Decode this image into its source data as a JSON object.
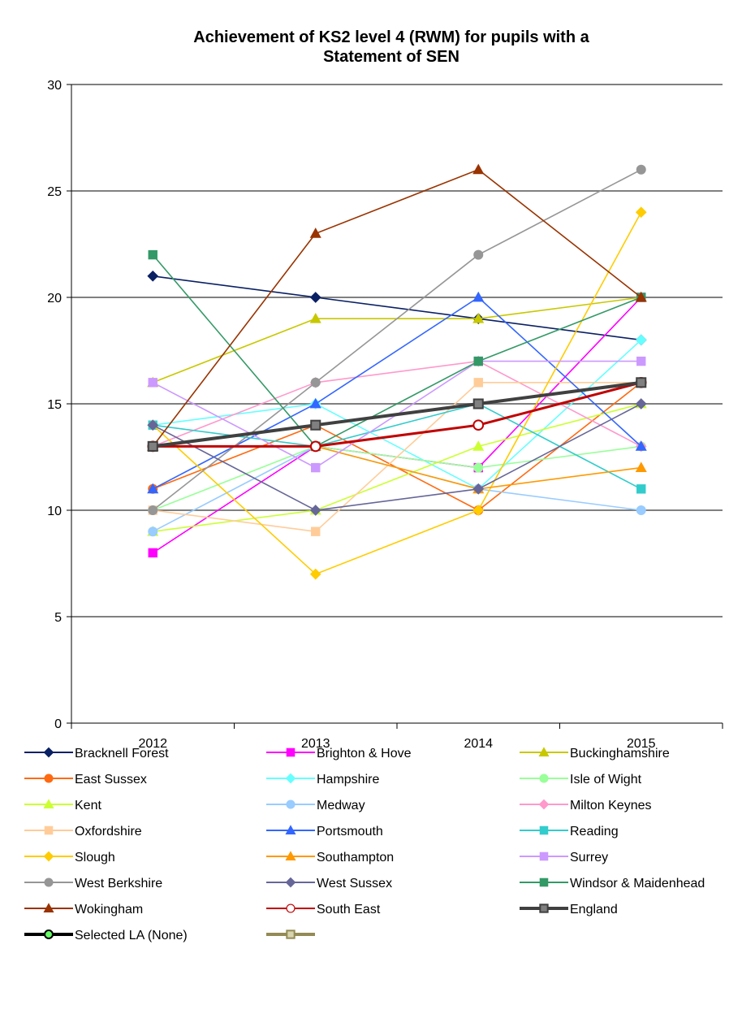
{
  "chart_data": {
    "type": "line",
    "title": [
      "Achievement of KS2 level 4 (RWM) for pupils with a",
      "Statement of SEN"
    ],
    "categories": [
      "2012",
      "2013",
      "2014",
      "2015"
    ],
    "ylim": [
      0,
      30
    ],
    "yticks": [
      0,
      5,
      10,
      15,
      20,
      25,
      30
    ],
    "grid": true,
    "legend_position": "bottom",
    "series": [
      {
        "name": "Bracknell Forest",
        "values": [
          21,
          20,
          19,
          18
        ],
        "color": "#0a2064",
        "marker": "diamond",
        "fill": "#0a2064"
      },
      {
        "name": "Brighton & Hove",
        "values": [
          8,
          13,
          12,
          20
        ],
        "color": "#ff00ff",
        "marker": "square",
        "fill": "#ff00ff"
      },
      {
        "name": "Buckinghamshire",
        "values": [
          16,
          19,
          19,
          20
        ],
        "color": "#c8c800",
        "marker": "triangle",
        "fill": "#c8c800"
      },
      {
        "name": "East Sussex",
        "values": [
          11,
          14,
          10,
          16
        ],
        "color": "#ff6a10",
        "marker": "circle",
        "fill": "#ff6a10"
      },
      {
        "name": "Hampshire",
        "values": [
          14,
          15,
          11,
          18
        ],
        "color": "#66ffff",
        "marker": "diamond",
        "fill": "#66ffff"
      },
      {
        "name": "Isle of Wight",
        "values": [
          10,
          13,
          12,
          13
        ],
        "color": "#99ff99",
        "marker": "circle",
        "fill": "#99ff99"
      },
      {
        "name": "Kent",
        "values": [
          9,
          10,
          13,
          15
        ],
        "color": "#ccff33",
        "marker": "triangle",
        "fill": "#ccff33"
      },
      {
        "name": "Medway",
        "values": [
          9,
          13,
          11,
          10
        ],
        "color": "#99ccff",
        "marker": "circle",
        "fill": "#99ccff"
      },
      {
        "name": "Milton Keynes",
        "values": [
          13,
          16,
          17,
          13
        ],
        "color": "#ff99cc",
        "marker": "diamond",
        "fill": "#ff99cc"
      },
      {
        "name": "Oxfordshire",
        "values": [
          10,
          9,
          16,
          16
        ],
        "color": "#ffcc99",
        "marker": "square",
        "fill": "#ffcc99"
      },
      {
        "name": "Portsmouth",
        "values": [
          11,
          15,
          20,
          13
        ],
        "color": "#3366ff",
        "marker": "triangle",
        "fill": "#3366ff"
      },
      {
        "name": "Reading",
        "values": [
          14,
          13,
          15,
          11
        ],
        "color": "#33cccc",
        "marker": "square",
        "fill": "#33cccc"
      },
      {
        "name": "Slough",
        "values": [
          14,
          7,
          10,
          24
        ],
        "color": "#ffcc00",
        "marker": "diamond",
        "fill": "#ffcc00"
      },
      {
        "name": "Southampton",
        "values": [
          13,
          13,
          11,
          12
        ],
        "color": "#ff9900",
        "marker": "triangle",
        "fill": "#ff9900"
      },
      {
        "name": "Surrey",
        "values": [
          16,
          12,
          17,
          17
        ],
        "color": "#cc99ff",
        "marker": "square",
        "fill": "#cc99ff"
      },
      {
        "name": "West Berkshire",
        "values": [
          10,
          16,
          22,
          26
        ],
        "color": "#969696",
        "marker": "circle",
        "fill": "#969696"
      },
      {
        "name": "West Sussex",
        "values": [
          14,
          10,
          11,
          15
        ],
        "color": "#666699",
        "marker": "diamond",
        "fill": "#666699"
      },
      {
        "name": "Windsor & Maidenhead",
        "values": [
          22,
          13,
          17,
          20
        ],
        "color": "#339966",
        "marker": "square",
        "fill": "#339966"
      },
      {
        "name": "Wokingham",
        "values": [
          13,
          23,
          26,
          20
        ],
        "color": "#993300",
        "marker": "triangle",
        "fill": "#993300"
      },
      {
        "name": "South East",
        "values": [
          13,
          13,
          14,
          16
        ],
        "color": "#c00000",
        "marker": "circle",
        "fill": "#ffffff"
      },
      {
        "name": "England",
        "values": [
          13,
          14,
          15,
          16
        ],
        "color": "#404040",
        "marker": "square",
        "fill": "#808080"
      }
    ],
    "legend_extra": [
      {
        "name": "Selected LA (None)",
        "color": "#000000",
        "marker": "circle",
        "fill": "#66ff66"
      },
      {
        "name": "",
        "color": "#948a54",
        "marker": "square",
        "fill": "#d8d4b0"
      }
    ]
  }
}
